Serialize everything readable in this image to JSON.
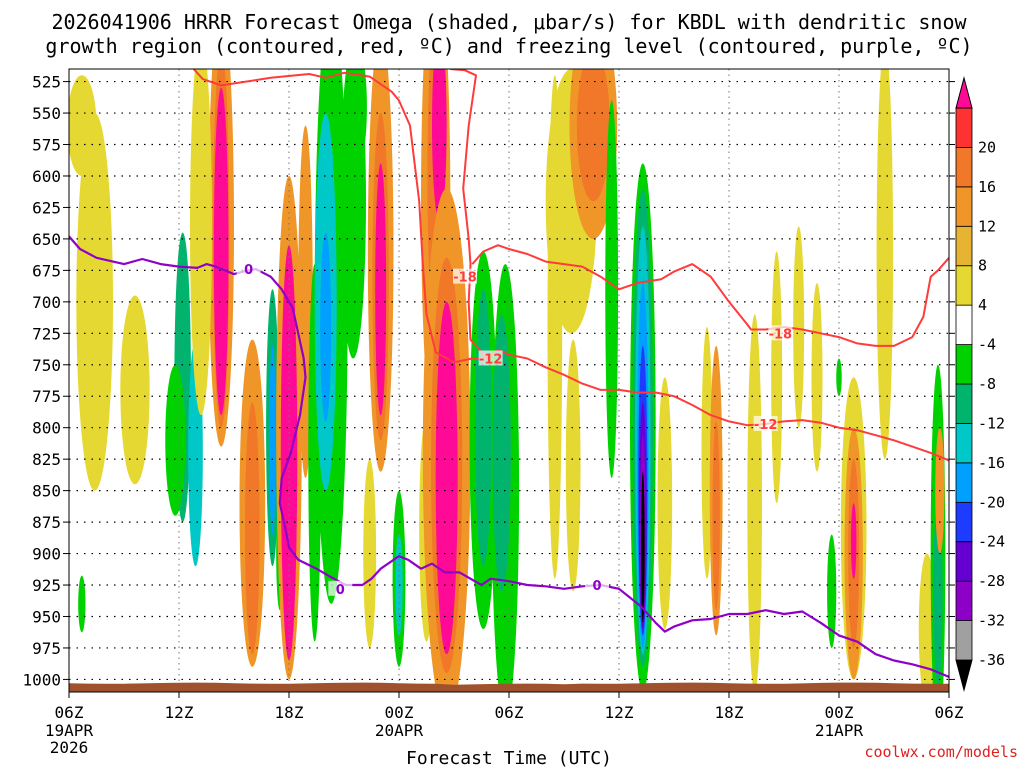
{
  "chart_data": {
    "type": "heatmap",
    "title_line1": "2026041906 HRRR Forecast Omega (shaded, μbar/s) for KBDL with dendritic snow",
    "title_line2": "growth region (contoured, red, ºC) and freezing level (contoured, purple, ºC)",
    "xlabel": "Forecast Time (UTC)",
    "credit": "coolwx.com/models",
    "x_range_hours": [
      0,
      48
    ],
    "y_range_mb": [
      515,
      1010
    ],
    "y_ticks": [
      "525",
      "550",
      "575",
      "600",
      "625",
      "650",
      "675",
      "700",
      "725",
      "750",
      "775",
      "800",
      "825",
      "850",
      "875",
      "900",
      "925",
      "950",
      "975",
      "1000"
    ],
    "x_ticks": [
      {
        "h": 0,
        "l1": "06Z",
        "l2": "19APR",
        "l3": "2026"
      },
      {
        "h": 6,
        "l1": "12Z",
        "l2": "",
        "l3": ""
      },
      {
        "h": 12,
        "l1": "18Z",
        "l2": "",
        "l3": ""
      },
      {
        "h": 18,
        "l1": "00Z",
        "l2": "20APR",
        "l3": ""
      },
      {
        "h": 24,
        "l1": "06Z",
        "l2": "",
        "l3": ""
      },
      {
        "h": 30,
        "l1": "12Z",
        "l2": "",
        "l3": ""
      },
      {
        "h": 36,
        "l1": "18Z",
        "l2": "",
        "l3": ""
      },
      {
        "h": 42,
        "l1": "00Z",
        "l2": "21APR",
        "l3": ""
      },
      {
        "h": 48,
        "l1": "06Z",
        "l2": "",
        "l3": ""
      }
    ],
    "colorbar": {
      "colors": [
        "#000000",
        "#a0a0a0",
        "#8c00c8",
        "#6400d2",
        "#1e3cff",
        "#00a0ff",
        "#00c8c8",
        "#00b46e",
        "#00d200",
        "#ffffff",
        "#e6d832",
        "#e6b432",
        "#f09628",
        "#f07828",
        "#ff3232",
        "#ff0a96"
      ],
      "labels": [
        "-36",
        "-32",
        "-28",
        "-24",
        "-20",
        "-16",
        "-12",
        "-8",
        "-4",
        "4",
        "8",
        "12",
        "16",
        "20"
      ]
    },
    "omega_cells": [
      {
        "h": 6.2,
        "p": 760,
        "dh": 0.45,
        "dp": 230,
        "v": -9
      },
      {
        "h": 6.9,
        "p": 820,
        "dh": 0.4,
        "dp": 180,
        "v": -12
      },
      {
        "h": 5.8,
        "p": 810,
        "dh": 0.55,
        "dp": 120,
        "v": -6
      },
      {
        "h": 0.7,
        "p": 940,
        "dh": 0.2,
        "dp": 45,
        "v": -6
      },
      {
        "h": 1.4,
        "p": 700,
        "dh": 1.0,
        "dp": 300,
        "v": 5
      },
      {
        "h": 0.7,
        "p": 560,
        "dh": 0.8,
        "dp": 80,
        "v": 5
      },
      {
        "h": 3.6,
        "p": 770,
        "dh": 0.8,
        "dp": 150,
        "v": 5
      },
      {
        "h": 8.3,
        "p": 640,
        "dh": 0.7,
        "dp": 350,
        "v": 10
      },
      {
        "h": 8.3,
        "p": 650,
        "dh": 0.45,
        "dp": 300,
        "v": 14
      },
      {
        "h": 8.3,
        "p": 660,
        "dh": 0.4,
        "dp": 260,
        "v": 22
      },
      {
        "h": 7.2,
        "p": 640,
        "dh": 0.6,
        "dp": 300,
        "v": 5
      },
      {
        "h": 10.0,
        "p": 860,
        "dh": 0.7,
        "dp": 260,
        "v": 9
      },
      {
        "h": 10.0,
        "p": 880,
        "dh": 0.4,
        "dp": 200,
        "v": 15
      },
      {
        "h": 11.1,
        "p": 800,
        "dh": 0.35,
        "dp": 220,
        "v": -9
      },
      {
        "h": 11.1,
        "p": 810,
        "dh": 0.18,
        "dp": 150,
        "v": -16
      },
      {
        "h": 11.5,
        "p": 900,
        "dh": 0.2,
        "dp": 90,
        "v": -5
      },
      {
        "h": 12.0,
        "p": 800,
        "dh": 0.7,
        "dp": 400,
        "v": 10
      },
      {
        "h": 12.0,
        "p": 820,
        "dh": 0.45,
        "dp": 330,
        "v": 22
      },
      {
        "h": 12.9,
        "p": 700,
        "dh": 0.4,
        "dp": 280,
        "v": 8
      },
      {
        "h": 13.4,
        "p": 820,
        "dh": 0.35,
        "dp": 300,
        "v": -6
      },
      {
        "h": 14.3,
        "p": 700,
        "dh": 0.9,
        "dp": 480,
        "v": -6
      },
      {
        "h": 14.0,
        "p": 700,
        "dh": 0.6,
        "dp": 300,
        "v": -12
      },
      {
        "h": 14.0,
        "p": 720,
        "dh": 0.3,
        "dp": 150,
        "v": -17
      },
      {
        "h": 15.5,
        "p": 620,
        "dh": 0.7,
        "dp": 250,
        "v": -6
      },
      {
        "h": 15.9,
        "p": 545,
        "dh": 0.35,
        "dp": 80,
        "v": -6
      },
      {
        "h": 17.0,
        "p": 660,
        "dh": 0.7,
        "dp": 350,
        "v": 10
      },
      {
        "h": 17.0,
        "p": 680,
        "dh": 0.45,
        "dp": 260,
        "v": 15
      },
      {
        "h": 17.0,
        "p": 690,
        "dh": 0.3,
        "dp": 200,
        "v": 22
      },
      {
        "h": 16.4,
        "p": 900,
        "dh": 0.35,
        "dp": 150,
        "v": 5
      },
      {
        "h": 18.0,
        "p": 920,
        "dh": 0.35,
        "dp": 140,
        "v": -6
      },
      {
        "h": 18.0,
        "p": 925,
        "dh": 0.2,
        "dp": 80,
        "v": -14
      },
      {
        "h": 19.5,
        "p": 880,
        "dh": 0.4,
        "dp": 180,
        "v": 5
      },
      {
        "h": 20.0,
        "p": 620,
        "dh": 0.8,
        "dp": 380,
        "v": 10
      },
      {
        "h": 20.0,
        "p": 600,
        "dh": 0.45,
        "dp": 250,
        "v": 14
      },
      {
        "h": 20.2,
        "p": 560,
        "dh": 0.4,
        "dp": 150,
        "v": 22
      },
      {
        "h": 20.6,
        "p": 820,
        "dh": 1.3,
        "dp": 420,
        "v": 10
      },
      {
        "h": 20.6,
        "p": 830,
        "dh": 0.85,
        "dp": 330,
        "v": 15
      },
      {
        "h": 20.6,
        "p": 840,
        "dh": 0.6,
        "dp": 280,
        "v": 22
      },
      {
        "h": 22.6,
        "p": 810,
        "dh": 0.75,
        "dp": 300,
        "v": -6
      },
      {
        "h": 22.6,
        "p": 800,
        "dh": 0.45,
        "dp": 220,
        "v": -11
      },
      {
        "h": 23.8,
        "p": 850,
        "dh": 0.75,
        "dp": 360,
        "v": -6
      },
      {
        "h": 23.6,
        "p": 820,
        "dh": 0.5,
        "dp": 220,
        "v": -10
      },
      {
        "h": 26.5,
        "p": 720,
        "dh": 0.4,
        "dp": 400,
        "v": 5
      },
      {
        "h": 27.5,
        "p": 830,
        "dh": 0.4,
        "dp": 200,
        "v": 5
      },
      {
        "h": 27.4,
        "p": 620,
        "dh": 1.4,
        "dp": 210,
        "v": 5
      },
      {
        "h": 28.6,
        "p": 560,
        "dh": 1.3,
        "dp": 180,
        "v": 10
      },
      {
        "h": 28.6,
        "p": 560,
        "dh": 0.9,
        "dp": 120,
        "v": 14
      },
      {
        "h": 29.6,
        "p": 690,
        "dh": 0.35,
        "dp": 300,
        "v": -6
      },
      {
        "h": 31.3,
        "p": 800,
        "dh": 0.7,
        "dp": 420,
        "v": -6
      },
      {
        "h": 31.3,
        "p": 800,
        "dh": 0.55,
        "dp": 380,
        "v": -9
      },
      {
        "h": 31.3,
        "p": 810,
        "dh": 0.42,
        "dp": 340,
        "v": -13
      },
      {
        "h": 31.3,
        "p": 830,
        "dh": 0.32,
        "dp": 290,
        "v": -18
      },
      {
        "h": 31.3,
        "p": 850,
        "dh": 0.25,
        "dp": 230,
        "v": -22
      },
      {
        "h": 31.3,
        "p": 870,
        "dh": 0.2,
        "dp": 180,
        "v": -26
      },
      {
        "h": 31.3,
        "p": 880,
        "dh": 0.15,
        "dp": 150,
        "v": -30
      },
      {
        "h": 31.3,
        "p": 895,
        "dh": 0.1,
        "dp": 120,
        "v": -38
      },
      {
        "h": 32.5,
        "p": 860,
        "dh": 0.4,
        "dp": 200,
        "v": 5
      },
      {
        "h": 34.8,
        "p": 820,
        "dh": 0.3,
        "dp": 200,
        "v": 5
      },
      {
        "h": 35.3,
        "p": 850,
        "dh": 0.35,
        "dp": 230,
        "v": 10
      },
      {
        "h": 35.3,
        "p": 870,
        "dh": 0.2,
        "dp": 150,
        "v": 14
      },
      {
        "h": 37.4,
        "p": 860,
        "dh": 0.4,
        "dp": 300,
        "v": 5
      },
      {
        "h": 38.6,
        "p": 760,
        "dh": 0.3,
        "dp": 200,
        "v": 5
      },
      {
        "h": 39.8,
        "p": 720,
        "dh": 0.3,
        "dp": 160,
        "v": 5
      },
      {
        "h": 40.8,
        "p": 760,
        "dh": 0.3,
        "dp": 150,
        "v": 5
      },
      {
        "h": 41.6,
        "p": 930,
        "dh": 0.25,
        "dp": 90,
        "v": -6
      },
      {
        "h": 42.0,
        "p": 760,
        "dh": 0.15,
        "dp": 30,
        "v": -6
      },
      {
        "h": 42.8,
        "p": 880,
        "dh": 0.7,
        "dp": 240,
        "v": 5
      },
      {
        "h": 42.8,
        "p": 900,
        "dh": 0.5,
        "dp": 200,
        "v": 10
      },
      {
        "h": 42.8,
        "p": 900,
        "dh": 0.3,
        "dp": 150,
        "v": 14
      },
      {
        "h": 42.8,
        "p": 890,
        "dh": 0.15,
        "dp": 60,
        "v": 22
      },
      {
        "h": 44.5,
        "p": 660,
        "dh": 0.45,
        "dp": 330,
        "v": 5
      },
      {
        "h": 46.8,
        "p": 960,
        "dh": 0.45,
        "dp": 120,
        "v": 5
      },
      {
        "h": 47.4,
        "p": 900,
        "dh": 0.4,
        "dp": 300,
        "v": -6
      },
      {
        "h": 47.4,
        "p": 930,
        "dh": 0.25,
        "dp": 150,
        "v": -10
      },
      {
        "h": 47.5,
        "p": 850,
        "dh": 0.25,
        "dp": 100,
        "v": 10
      }
    ],
    "snow_minus18_upper": [
      [
        6.8,
        515
      ],
      [
        7.3,
        523
      ],
      [
        8.3,
        528
      ],
      [
        11.0,
        522
      ],
      [
        13.1,
        519
      ],
      [
        14.0,
        522
      ],
      [
        15.0,
        518
      ],
      [
        16.4,
        521
      ],
      [
        17.6,
        533
      ],
      [
        18.0,
        540
      ],
      [
        18.6,
        560
      ],
      [
        19.1,
        620
      ],
      [
        19.3,
        670
      ],
      [
        19.5,
        710
      ],
      [
        20.0,
        740
      ],
      [
        21.0,
        748
      ],
      [
        22.0,
        745
      ],
      [
        23.0,
        745
      ]
    ],
    "snow_minus18_inner": [
      [
        20.8,
        515
      ],
      [
        21.6,
        516
      ],
      [
        22.2,
        520
      ],
      [
        21.8,
        560
      ],
      [
        21.5,
        610
      ],
      [
        21.8,
        650
      ],
      [
        21.9,
        670
      ],
      [
        21.8,
        700
      ],
      [
        21.9,
        730
      ],
      [
        22.8,
        745
      ],
      [
        23.4,
        738
      ]
    ],
    "snow_minus18_lower": [
      [
        22.0,
        670
      ],
      [
        22.6,
        660
      ],
      [
        23.4,
        655
      ],
      [
        24.0,
        658
      ],
      [
        25.0,
        662
      ],
      [
        26.0,
        668
      ],
      [
        27.0,
        670
      ],
      [
        28.0,
        672
      ],
      [
        29.0,
        680
      ],
      [
        30.0,
        690
      ],
      [
        31.0,
        685
      ],
      [
        32.3,
        682
      ],
      [
        33.0,
        676
      ],
      [
        34.0,
        670
      ],
      [
        35.0,
        680
      ],
      [
        36.0,
        700
      ],
      [
        37.0,
        718
      ],
      [
        37.2,
        722
      ],
      [
        38.0,
        722
      ],
      [
        39.0,
        720
      ],
      [
        40.0,
        722
      ],
      [
        41.0,
        725
      ],
      [
        42.0,
        728
      ],
      [
        43.0,
        733
      ],
      [
        44.0,
        735
      ],
      [
        45.0,
        735
      ],
      [
        46.0,
        728
      ],
      [
        46.6,
        712
      ],
      [
        47.0,
        680
      ],
      [
        47.4,
        675
      ],
      [
        48.0,
        665
      ]
    ],
    "snow_minus12": [
      [
        23.4,
        738
      ],
      [
        24.0,
        742
      ],
      [
        25.0,
        745
      ],
      [
        26.0,
        752
      ],
      [
        27.0,
        758
      ],
      [
        28.0,
        765
      ],
      [
        29.0,
        770
      ],
      [
        30.0,
        770
      ],
      [
        31.0,
        772
      ],
      [
        32.0,
        772
      ],
      [
        33.0,
        775
      ],
      [
        34.0,
        782
      ],
      [
        35.0,
        790
      ],
      [
        36.0,
        795
      ],
      [
        37.0,
        798
      ],
      [
        38.0,
        797
      ],
      [
        39.0,
        795
      ],
      [
        40.0,
        794
      ],
      [
        41.0,
        796
      ],
      [
        42.0,
        800
      ],
      [
        43.0,
        802
      ],
      [
        44.0,
        806
      ],
      [
        45.0,
        810
      ],
      [
        46.0,
        815
      ],
      [
        47.0,
        820
      ],
      [
        48.0,
        826
      ]
    ],
    "freezing_level": [
      [
        0,
        648
      ],
      [
        0.6,
        658
      ],
      [
        1.5,
        665
      ],
      [
        3.0,
        670
      ],
      [
        4.0,
        666
      ],
      [
        5.0,
        670
      ],
      [
        6.0,
        672
      ],
      [
        7.0,
        673
      ],
      [
        7.5,
        670
      ],
      [
        8.0,
        672
      ],
      [
        8.5,
        675
      ],
      [
        9.0,
        678
      ],
      [
        9.5,
        676
      ],
      [
        10.2,
        674
      ],
      [
        11.0,
        680
      ],
      [
        11.6,
        690
      ],
      [
        12.2,
        705
      ],
      [
        12.8,
        745
      ],
      [
        12.9,
        760
      ],
      [
        12.6,
        790
      ],
      [
        12.1,
        820
      ],
      [
        11.6,
        840
      ],
      [
        11.5,
        860
      ],
      [
        11.8,
        880
      ],
      [
        12.0,
        895
      ],
      [
        12.5,
        905
      ],
      [
        13.5,
        912
      ],
      [
        14.2,
        918
      ],
      [
        15.1,
        925
      ],
      [
        16.0,
        925
      ],
      [
        16.5,
        920
      ],
      [
        17.0,
        912
      ],
      [
        18.0,
        902
      ],
      [
        18.5,
        905
      ],
      [
        19.2,
        912
      ],
      [
        19.8,
        908
      ],
      [
        20.5,
        915
      ],
      [
        21.3,
        915
      ],
      [
        22.5,
        925
      ],
      [
        23.0,
        920
      ],
      [
        24.0,
        922
      ],
      [
        25.0,
        925
      ],
      [
        26.0,
        926
      ],
      [
        27.0,
        928
      ],
      [
        28.0,
        926
      ],
      [
        29.0,
        925
      ],
      [
        30.0,
        928
      ],
      [
        30.6,
        935
      ],
      [
        31.2,
        942
      ],
      [
        32.0,
        955
      ],
      [
        32.5,
        962
      ],
      [
        33.0,
        958
      ],
      [
        34.0,
        953
      ],
      [
        35.0,
        952
      ],
      [
        36.0,
        948
      ],
      [
        37.0,
        948
      ],
      [
        38.0,
        945
      ],
      [
        39.0,
        948
      ],
      [
        40.0,
        946
      ],
      [
        41.0,
        955
      ],
      [
        42.0,
        965
      ],
      [
        43.0,
        970
      ],
      [
        44.0,
        980
      ],
      [
        45.0,
        985
      ],
      [
        46.0,
        988
      ],
      [
        47.0,
        992
      ],
      [
        48.0,
        998
      ]
    ],
    "terrain_top_mb": 1003,
    "contour_labels": [
      {
        "h": 21.6,
        "p": 680,
        "text": "-18",
        "color": "#ff3b3b"
      },
      {
        "h": 38.8,
        "p": 725,
        "text": "-18",
        "color": "#ff3b3b"
      },
      {
        "h": 23.0,
        "p": 745,
        "text": "-12",
        "color": "#ff3b3b"
      },
      {
        "h": 38.0,
        "p": 797,
        "text": "-12",
        "color": "#ff3b3b"
      },
      {
        "h": 9.8,
        "p": 674,
        "text": "0",
        "color": "#9000c8"
      },
      {
        "h": 14.8,
        "p": 928,
        "text": "0",
        "color": "#9000c8"
      },
      {
        "h": 28.8,
        "p": 925,
        "text": "0",
        "color": "#9000c8"
      }
    ]
  }
}
